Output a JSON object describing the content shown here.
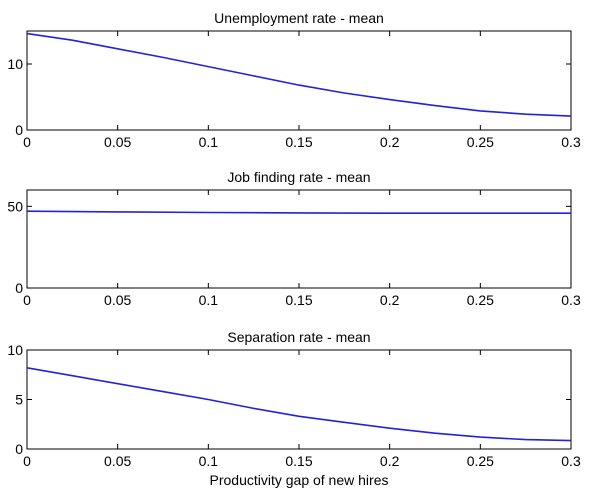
{
  "chart_data": [
    {
      "type": "line",
      "title": "Unemployment rate - mean",
      "xlabel": "",
      "ylabel": "",
      "xlim": [
        0,
        0.3
      ],
      "ylim": [
        0,
        15
      ],
      "xticks": [
        0,
        0.05,
        0.1,
        0.15,
        0.2,
        0.25,
        0.3
      ],
      "xtick_labels": [
        "0",
        "0.05",
        "0.1",
        "0.15",
        "0.2",
        "0.25",
        "0.3"
      ],
      "yticks": [
        0,
        10
      ],
      "ytick_labels": [
        "0",
        "10"
      ],
      "color": "#2222dd",
      "series": [
        {
          "x": [
            0,
            0.025,
            0.05,
            0.075,
            0.1,
            0.125,
            0.15,
            0.175,
            0.2,
            0.225,
            0.25,
            0.275,
            0.3
          ],
          "y": [
            14.6,
            13.6,
            12.3,
            11.0,
            9.6,
            8.2,
            6.8,
            5.6,
            4.6,
            3.7,
            2.9,
            2.4,
            2.1
          ]
        }
      ]
    },
    {
      "type": "line",
      "title": "Job finding rate - mean",
      "xlabel": "",
      "ylabel": "",
      "xlim": [
        0,
        0.3
      ],
      "ylim": [
        0,
        60
      ],
      "xticks": [
        0,
        0.05,
        0.1,
        0.15,
        0.2,
        0.25,
        0.3
      ],
      "xtick_labels": [
        "0",
        "0.05",
        "0.1",
        "0.15",
        "0.2",
        "0.25",
        "0.3"
      ],
      "yticks": [
        0,
        50
      ],
      "ytick_labels": [
        "0",
        "50"
      ],
      "color": "#2222dd",
      "series": [
        {
          "x": [
            0,
            0.05,
            0.1,
            0.15,
            0.2,
            0.25,
            0.3
          ],
          "y": [
            47.0,
            46.6,
            46.2,
            46.0,
            45.8,
            45.8,
            45.8
          ]
        }
      ]
    },
    {
      "type": "line",
      "title": "Separation rate - mean",
      "xlabel": "Productivity gap of new hires",
      "ylabel": "",
      "xlim": [
        0,
        0.3
      ],
      "ylim": [
        0,
        10
      ],
      "xticks": [
        0,
        0.05,
        0.1,
        0.15,
        0.2,
        0.25,
        0.3
      ],
      "xtick_labels": [
        "0",
        "0.05",
        "0.1",
        "0.15",
        "0.2",
        "0.25",
        "0.3"
      ],
      "yticks": [
        0,
        5,
        10
      ],
      "ytick_labels": [
        "0",
        "5",
        "10"
      ],
      "color": "#2222dd",
      "series": [
        {
          "x": [
            0,
            0.025,
            0.05,
            0.075,
            0.1,
            0.125,
            0.15,
            0.175,
            0.2,
            0.225,
            0.25,
            0.275,
            0.3
          ],
          "y": [
            8.2,
            7.4,
            6.6,
            5.8,
            5.0,
            4.1,
            3.3,
            2.7,
            2.1,
            1.6,
            1.2,
            0.95,
            0.85
          ]
        }
      ]
    }
  ]
}
